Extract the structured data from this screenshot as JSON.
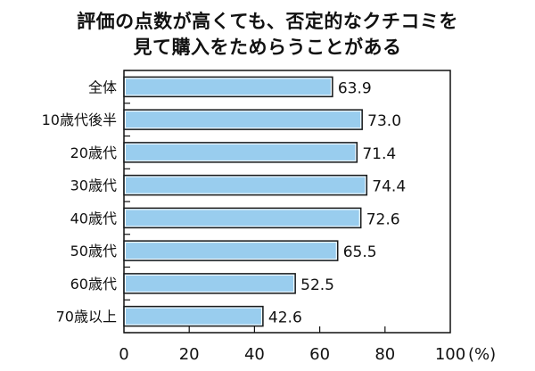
{
  "chart_data": {
    "type": "bar",
    "orientation": "horizontal",
    "title_lines": [
      "評価の点数が高くても、否定的なクチコミを",
      "見て購入をためらうことがある"
    ],
    "categories": [
      "全体",
      "10歳代後半",
      "20歳代",
      "30歳代",
      "40歳代",
      "50歳代",
      "60歳代",
      "70歳以上"
    ],
    "values": [
      63.9,
      73.0,
      71.4,
      74.4,
      72.6,
      65.5,
      52.5,
      42.6
    ],
    "value_labels": [
      "63.9",
      "73.0",
      "71.4",
      "74.4",
      "72.6",
      "65.5",
      "52.5",
      "42.6"
    ],
    "xlim": [
      0,
      100
    ],
    "xticks": [
      "0",
      "20",
      "40",
      "60",
      "80",
      "100"
    ],
    "xunit": "(%)",
    "grid": false,
    "colors": {
      "bar": "#99cdee",
      "outline": "#1a1a1a"
    }
  }
}
